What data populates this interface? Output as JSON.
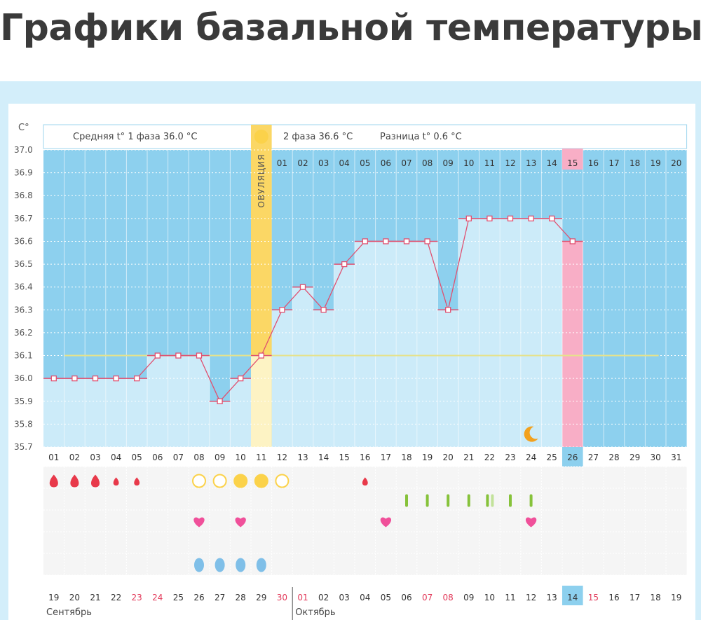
{
  "page": {
    "title": "Графики базальной температуры"
  },
  "header": {
    "unit": "C°",
    "phase1_label": "Средняя t° 1 фаза 36.0 °С",
    "phase2_label": "2 фаза 36.6 °С",
    "difference_label": "Разница t° 0.6 °С"
  },
  "ovulation": {
    "label": "ОВУЛЯЦИЯ",
    "day_index": 10
  },
  "colors": {
    "phase_bg": "#8dd0ee",
    "column": "#ccebf9",
    "ovulation": "#fbd765",
    "temp_line": "#e05070",
    "cover_line": "#e6e28a",
    "current_day": "#f8aec6",
    "bleeding": "#e8394a",
    "egg": "#fbd24a",
    "stick": "#86c23a",
    "heart": "#f0509a",
    "drop": "#7fbfe8"
  },
  "chart_data": {
    "type": "line",
    "title": "",
    "ylabel": "C°",
    "ylim": [
      35.7,
      37.0
    ],
    "y_ticks": [
      "37.0",
      "36.9",
      "36.8",
      "36.7",
      "36.6",
      "36.5",
      "36.4",
      "36.3",
      "36.2",
      "36.1",
      "36.0",
      "35.9",
      "35.8",
      "35.7"
    ],
    "cycle_days": [
      "01",
      "02",
      "03",
      "04",
      "05",
      "06",
      "07",
      "08",
      "09",
      "10",
      "11",
      "12",
      "13",
      "14",
      "15",
      "16",
      "17",
      "18",
      "19",
      "20",
      "21",
      "22",
      "23",
      "24",
      "25",
      "26",
      "27",
      "28",
      "29",
      "30",
      "31"
    ],
    "post_ovulation_days": [
      "01",
      "02",
      "03",
      "04",
      "05",
      "06",
      "07",
      "08",
      "09",
      "10",
      "11",
      "12",
      "13",
      "14",
      "15",
      "16",
      "17",
      "18",
      "19",
      "20"
    ],
    "temperatures": [
      36.0,
      36.0,
      36.0,
      36.0,
      36.0,
      36.1,
      36.1,
      36.1,
      35.9,
      36.0,
      36.1,
      36.3,
      36.4,
      36.3,
      36.5,
      36.6,
      36.6,
      36.6,
      36.6,
      36.3,
      36.7,
      36.7,
      36.7,
      36.7,
      36.7,
      36.6
    ],
    "cover_line": 36.1,
    "current_day_index": 25,
    "current_post_ovulation_day_index": 14,
    "night_icon_day_index": 23,
    "calendar_dates": [
      "19",
      "20",
      "21",
      "22",
      "23",
      "24",
      "25",
      "26",
      "27",
      "28",
      "29",
      "30",
      "01",
      "02",
      "03",
      "04",
      "05",
      "06",
      "07",
      "08",
      "09",
      "10",
      "11",
      "12",
      "13",
      "14",
      "15",
      "16",
      "17",
      "18",
      "19"
    ],
    "weekend_indices": [
      4,
      5,
      11,
      12,
      18,
      19,
      26
    ],
    "current_date_index": 25,
    "months": [
      {
        "name": "Сентябрь",
        "start_index": 0
      },
      {
        "name": "Октябрь",
        "start_index": 12
      }
    ],
    "bleeding": [
      {
        "day_index": 0,
        "size": "large"
      },
      {
        "day_index": 1,
        "size": "large"
      },
      {
        "day_index": 2,
        "size": "large"
      },
      {
        "day_index": 3,
        "size": "small"
      },
      {
        "day_index": 4,
        "size": "small"
      },
      {
        "day_index": 15,
        "size": "small"
      }
    ],
    "egg_white": [
      {
        "day_index": 7,
        "filled": false
      },
      {
        "day_index": 8,
        "filled": false
      },
      {
        "day_index": 9,
        "filled": true
      },
      {
        "day_index": 10,
        "filled": true
      },
      {
        "day_index": 11,
        "filled": false
      }
    ],
    "tests": [
      {
        "day_index": 17,
        "bars": 1
      },
      {
        "day_index": 18,
        "bars": 1
      },
      {
        "day_index": 19,
        "bars": 1
      },
      {
        "day_index": 20,
        "bars": 1
      },
      {
        "day_index": 21,
        "bars": 2
      },
      {
        "day_index": 22,
        "bars": 1
      },
      {
        "day_index": 23,
        "bars": 1
      }
    ],
    "intercourse": [
      7,
      9,
      16,
      23
    ],
    "discharge": [
      7,
      8,
      9,
      10
    ]
  }
}
